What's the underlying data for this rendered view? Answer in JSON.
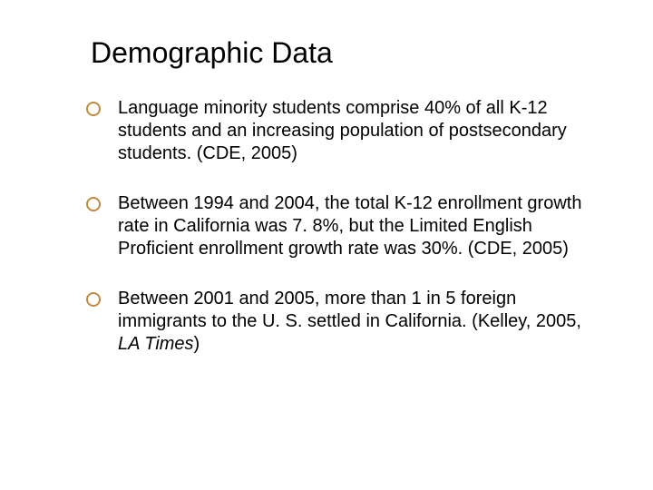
{
  "slide": {
    "title": "Demographic Data",
    "title_color": "#000000",
    "title_fontsize": 32,
    "body_fontsize": 20,
    "body_color": "#000000",
    "bullet_color": "#c08a3e",
    "background_color": "#ffffff",
    "bullets": [
      {
        "text": "Language minority students comprise 40% of all K-12 students and an increasing population of postsecondary students. (CDE, 2005)"
      },
      {
        "text": "Between 1994 and 2004, the total K-12 enrollment growth rate in California was 7. 8%, but the Limited English Proficient enrollment growth rate was 30%.  (CDE, 2005)"
      },
      {
        "text_prefix": "Between 2001 and 2005, more than 1 in 5 foreign immigrants to the U. S. settled in California.  (Kelley, 2005, ",
        "text_italic": "LA Times",
        "text_suffix": ")"
      }
    ]
  }
}
